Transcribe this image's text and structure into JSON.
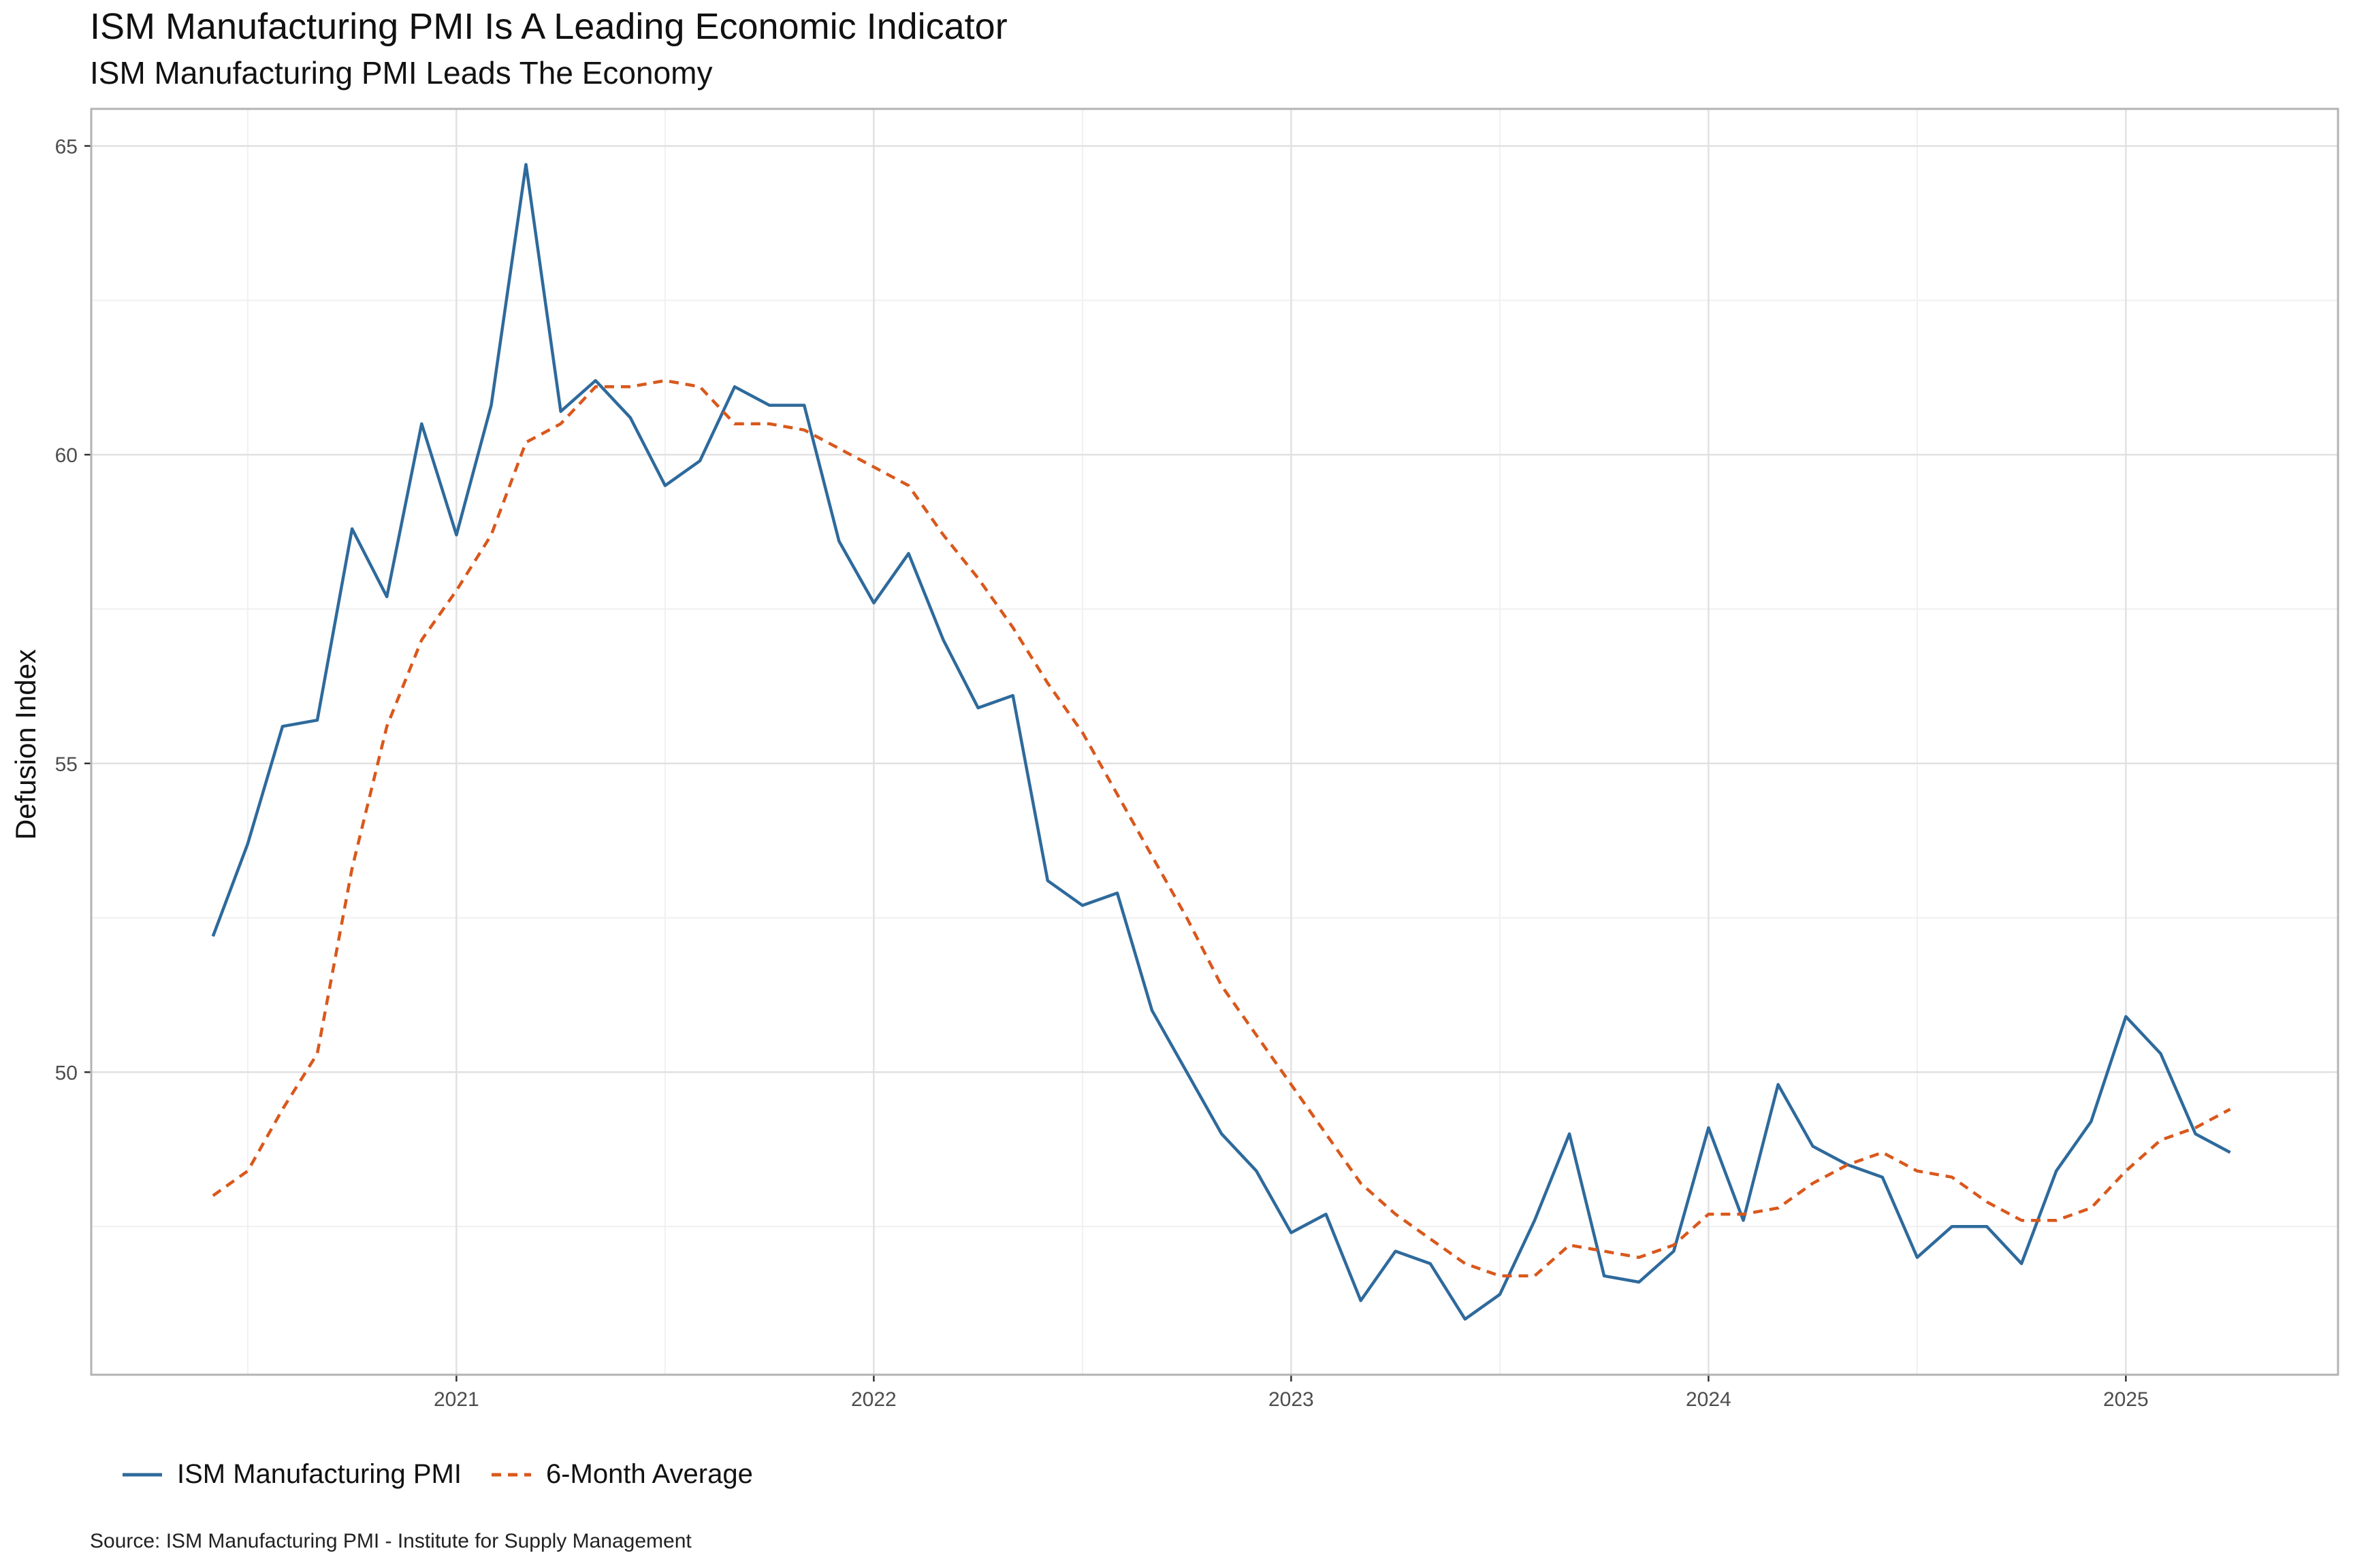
{
  "title": "ISM Manufacturing PMI Is A Leading Economic Indicator",
  "subtitle": "ISM Manufacturing PMI Leads The Economy",
  "caption": "Source: ISM Manufacturing PMI - Institute for Supply Management",
  "chart_data": {
    "type": "line",
    "title": "ISM Manufacturing PMI Is A Leading Economic Indicator",
    "subtitle": "ISM Manufacturing PMI Leads The Economy",
    "xlabel": "",
    "ylabel": "Defusion Index",
    "x": [
      "2020-06",
      "2020-07",
      "2020-08",
      "2020-09",
      "2020-10",
      "2020-11",
      "2020-12",
      "2021-01",
      "2021-02",
      "2021-03",
      "2021-04",
      "2021-05",
      "2021-06",
      "2021-07",
      "2021-08",
      "2021-09",
      "2021-10",
      "2021-11",
      "2021-12",
      "2022-01",
      "2022-02",
      "2022-03",
      "2022-04",
      "2022-05",
      "2022-06",
      "2022-07",
      "2022-08",
      "2022-09",
      "2022-10",
      "2022-11",
      "2022-12",
      "2023-01",
      "2023-02",
      "2023-03",
      "2023-04",
      "2023-05",
      "2023-06",
      "2023-07",
      "2023-08",
      "2023-09",
      "2023-10",
      "2023-11",
      "2023-12",
      "2024-01",
      "2024-02",
      "2024-03",
      "2024-04",
      "2024-05",
      "2024-06",
      "2024-07",
      "2024-08",
      "2024-09",
      "2024-10",
      "2024-11",
      "2024-12",
      "2025-01",
      "2025-02",
      "2025-03",
      "2025-04"
    ],
    "x_ticks": [
      "2021",
      "2022",
      "2023",
      "2024",
      "2025"
    ],
    "y_ticks": [
      50,
      55,
      60,
      65
    ],
    "ylim": [
      45.1,
      65.6
    ],
    "grid": true,
    "legend_position": "bottom-left",
    "series": [
      {
        "name": "ISM Manufacturing PMI",
        "color": "#2e6a9c",
        "dash": "solid",
        "values": [
          52.2,
          53.7,
          55.6,
          55.7,
          58.8,
          57.7,
          60.5,
          58.7,
          60.8,
          64.7,
          60.7,
          61.2,
          60.6,
          59.5,
          59.9,
          61.1,
          60.8,
          60.8,
          58.6,
          57.6,
          58.4,
          57.0,
          55.9,
          56.1,
          53.1,
          52.7,
          52.9,
          51.0,
          50.0,
          49.0,
          48.4,
          47.4,
          47.7,
          46.3,
          47.1,
          46.9,
          46.0,
          46.4,
          47.6,
          49.0,
          46.7,
          46.6,
          47.1,
          49.1,
          47.6,
          49.8,
          48.8,
          48.5,
          48.3,
          47.0,
          47.5,
          47.5,
          46.9,
          48.4,
          49.2,
          50.9,
          50.3,
          49.0,
          48.7
        ]
      },
      {
        "name": "6-Month Average",
        "color": "#d9581c",
        "dash": "dashed",
        "values": [
          48.0,
          48.4,
          49.4,
          50.3,
          53.3,
          55.6,
          57.0,
          57.8,
          58.7,
          60.2,
          60.5,
          61.1,
          61.1,
          61.2,
          61.1,
          60.5,
          60.5,
          60.4,
          60.1,
          59.8,
          59.5,
          58.7,
          58.0,
          57.2,
          56.3,
          55.5,
          54.5,
          53.5,
          52.5,
          51.4,
          50.6,
          49.8,
          49.0,
          48.2,
          47.7,
          47.3,
          46.9,
          46.7,
          46.7,
          47.2,
          47.1,
          47.0,
          47.2,
          47.7,
          47.7,
          47.8,
          48.2,
          48.5,
          48.7,
          48.4,
          48.3,
          47.9,
          47.6,
          47.6,
          47.8,
          48.4,
          48.9,
          49.1,
          49.4
        ]
      }
    ]
  }
}
